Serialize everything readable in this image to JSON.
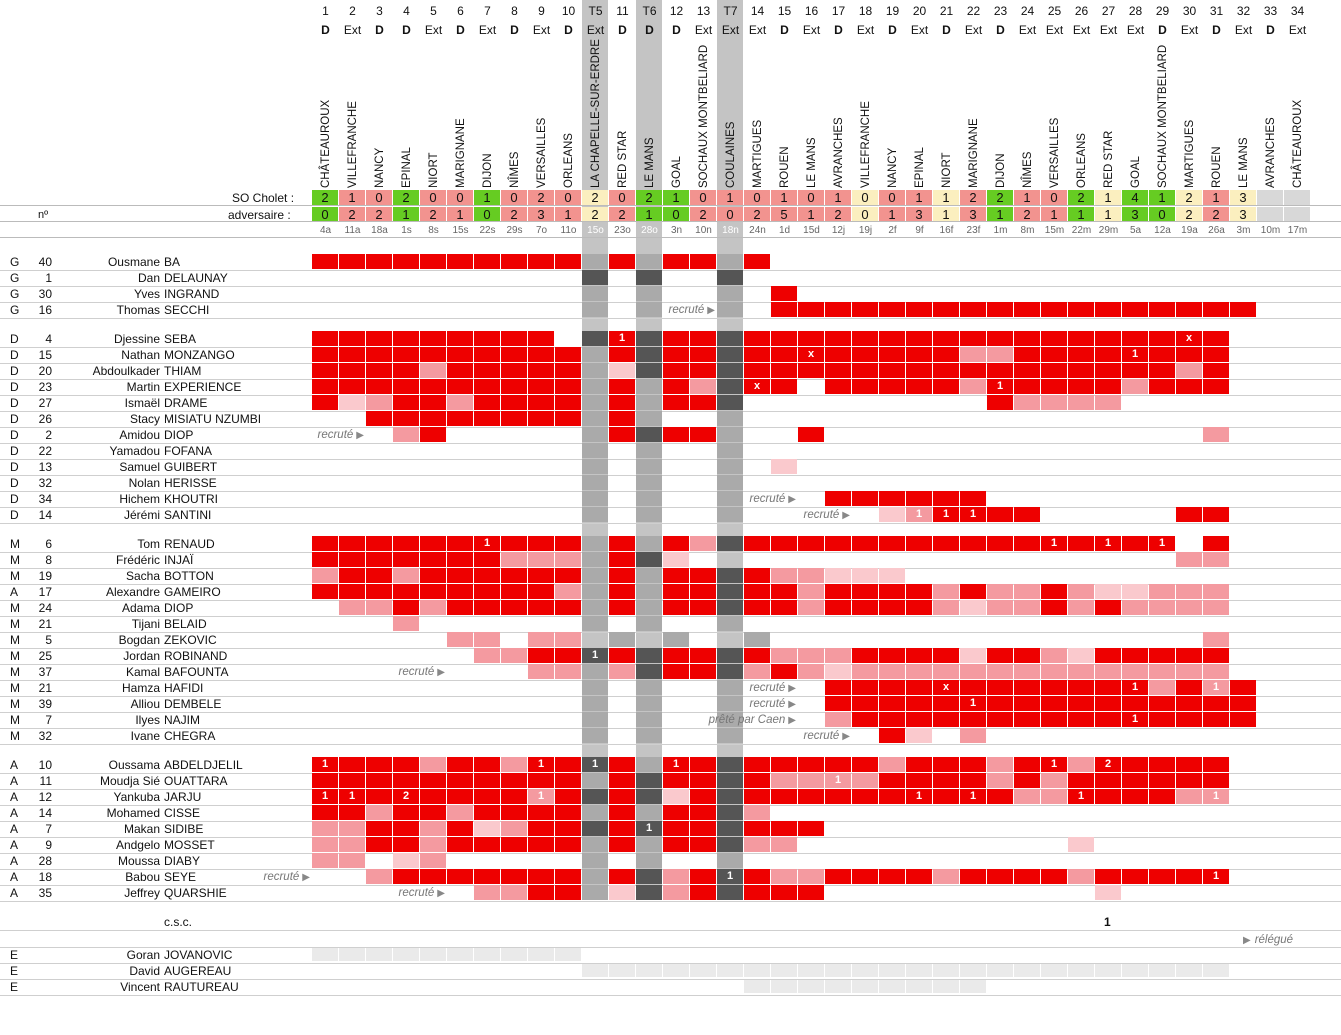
{
  "header": {
    "team_label": "SO Cholet :",
    "opp_label": "adversaire :",
    "no_label": "nº"
  },
  "columns": [
    {
      "n": "1",
      "v": "D",
      "opp": "CHÂTEAUROUX",
      "h": "2",
      "a": "0",
      "d": "4a",
      "sh": "g"
    },
    {
      "n": "2",
      "v": "Ext",
      "opp": "VILLEFRANCHE",
      "h": "1",
      "a": "2",
      "d": "11a",
      "sh": "r"
    },
    {
      "n": "3",
      "v": "D",
      "opp": "NANCY",
      "h": "0",
      "a": "2",
      "d": "18a",
      "sh": "r"
    },
    {
      "n": "4",
      "v": "D",
      "opp": "EPINAL",
      "h": "2",
      "a": "1",
      "d": "1s",
      "sh": "g"
    },
    {
      "n": "5",
      "v": "Ext",
      "opp": "NIORT",
      "h": "0",
      "a": "2",
      "d": "8s",
      "sh": "r"
    },
    {
      "n": "6",
      "v": "D",
      "opp": "MARIGNANE",
      "h": "0",
      "a": "1",
      "d": "15s",
      "sh": "r"
    },
    {
      "n": "7",
      "v": "Ext",
      "opp": "DIJON",
      "h": "1",
      "a": "0",
      "d": "22s",
      "sh": "g"
    },
    {
      "n": "8",
      "v": "D",
      "opp": "NÎMES",
      "h": "0",
      "a": "2",
      "d": "29s",
      "sh": "r"
    },
    {
      "n": "9",
      "v": "Ext",
      "opp": "VERSAILLES",
      "h": "2",
      "a": "3",
      "d": "7o",
      "sh": "r"
    },
    {
      "n": "10",
      "v": "D",
      "opp": "ORLEANS",
      "h": "0",
      "a": "1",
      "d": "11o",
      "sh": "r"
    },
    {
      "n": "T5",
      "v": "Ext",
      "opp": "LA CHAPELLE-SUR-ERDRE",
      "h": "2",
      "a": "2",
      "d": "15o",
      "sh": "y",
      "grey": true
    },
    {
      "n": "11",
      "v": "D",
      "opp": "RED STAR",
      "h": "0",
      "a": "2",
      "d": "23o",
      "sh": "r"
    },
    {
      "n": "T6",
      "v": "D",
      "opp": "LE MANS",
      "h": "2",
      "a": "1",
      "d": "28o",
      "sh": "g",
      "grey": true
    },
    {
      "n": "12",
      "v": "D",
      "opp": "GOAL",
      "h": "1",
      "a": "0",
      "d": "3n",
      "sh": "g"
    },
    {
      "n": "13",
      "v": "Ext",
      "opp": "SOCHAUX MONTBELIARD",
      "h": "0",
      "a": "2",
      "d": "10n",
      "sh": "r"
    },
    {
      "n": "T7",
      "v": "Ext",
      "opp": "COULAINES",
      "h": "1",
      "a": "0",
      "d": "18n",
      "sh": "r",
      "grey": true
    },
    {
      "n": "14",
      "v": "Ext",
      "opp": "MARTIGUES",
      "h": "0",
      "a": "2",
      "d": "24n",
      "sh": "r"
    },
    {
      "n": "15",
      "v": "D",
      "opp": "ROUEN",
      "h": "1",
      "a": "5",
      "d": "1d",
      "sh": "r"
    },
    {
      "n": "16",
      "v": "Ext",
      "opp": "LE MANS",
      "h": "0",
      "a": "1",
      "d": "15d",
      "sh": "r"
    },
    {
      "n": "17",
      "v": "D",
      "opp": "AVRANCHES",
      "h": "1",
      "a": "2",
      "d": "12j",
      "sh": "r"
    },
    {
      "n": "18",
      "v": "Ext",
      "opp": "VILLEFRANCHE",
      "h": "0",
      "a": "0",
      "d": "19j",
      "sh": "y"
    },
    {
      "n": "19",
      "v": "D",
      "opp": "NANCY",
      "h": "0",
      "a": "1",
      "d": "2f",
      "sh": "r"
    },
    {
      "n": "20",
      "v": "Ext",
      "opp": "EPINAL",
      "h": "1",
      "a": "3",
      "d": "9f",
      "sh": "r"
    },
    {
      "n": "21",
      "v": "D",
      "opp": "NIORT",
      "h": "1",
      "a": "1",
      "d": "16f",
      "sh": "y"
    },
    {
      "n": "22",
      "v": "Ext",
      "opp": "MARIGNANE",
      "h": "2",
      "a": "3",
      "d": "23f",
      "sh": "r"
    },
    {
      "n": "23",
      "v": "D",
      "opp": "DIJON",
      "h": "2",
      "a": "1",
      "d": "1m",
      "sh": "g"
    },
    {
      "n": "24",
      "v": "Ext",
      "opp": "NÎMES",
      "h": "1",
      "a": "2",
      "d": "8m",
      "sh": "r"
    },
    {
      "n": "25",
      "v": "Ext",
      "opp": "VERSAILLES",
      "h": "0",
      "a": "1",
      "d": "15m",
      "sh": "r"
    },
    {
      "n": "26",
      "v": "Ext",
      "opp": "ORLEANS",
      "h": "2",
      "a": "1",
      "d": "22m",
      "sh": "g"
    },
    {
      "n": "27",
      "v": "Ext",
      "opp": "RED STAR",
      "h": "1",
      "a": "1",
      "d": "29m",
      "sh": "y"
    },
    {
      "n": "28",
      "v": "Ext",
      "opp": "GOAL",
      "h": "4",
      "a": "3",
      "d": "5a",
      "sh": "g"
    },
    {
      "n": "29",
      "v": "D",
      "opp": "SOCHAUX MONTBELIARD",
      "h": "1",
      "a": "0",
      "d": "12a",
      "sh": "g"
    },
    {
      "n": "30",
      "v": "Ext",
      "opp": "MARTIGUES",
      "h": "2",
      "a": "2",
      "d": "19a",
      "sh": "y"
    },
    {
      "n": "31",
      "v": "D",
      "opp": "ROUEN",
      "h": "1",
      "a": "2",
      "d": "26a",
      "sh": "r"
    },
    {
      "n": "32",
      "v": "Ext",
      "opp": "LE MANS",
      "h": "3",
      "a": "3",
      "d": "3m",
      "sh": "y"
    },
    {
      "n": "33",
      "v": "D",
      "opp": "AVRANCHES",
      "h": "",
      "a": "",
      "d": "10m",
      "sh": "e"
    },
    {
      "n": "34",
      "v": "Ext",
      "opp": "CHÂTEAUROUX",
      "h": "",
      "a": "",
      "d": "17m",
      "sh": "e"
    }
  ],
  "players": [
    {
      "pos": "G",
      "no": "40",
      "first": "Ousmane",
      "last": "BA",
      "cells": "RRRRRRRRRRGRGRRGRP",
      "marks": {}
    },
    {
      "pos": "G",
      "no": "1",
      "first": "Dan",
      "last": "DELAUNAY",
      "cells": "..........D.D..D",
      "marks": {}
    },
    {
      "pos": "G",
      "no": "30",
      "first": "Yves",
      "last": "INGRAND",
      "cells": "..........G.G..GPRP",
      "marks": {}
    },
    {
      "pos": "G",
      "no": "16",
      "first": "Thomas",
      "last": "SECCHI",
      "cells": "..........G.G..G.RRRRRRRRRRRRRRRRRR",
      "marks": {},
      "note": {
        "text": "recruté",
        "col": 16
      }
    },
    {
      "pos": "D",
      "no": "4",
      "first": "Djessine",
      "last": "SEBA",
      "cells": "RRRRRRRRR.DRDRRDRRRRRRRRRRRRRRRRRR",
      "marks": {
        "12": "1",
        "33": "x"
      },
      "gap": true
    },
    {
      "pos": "D",
      "no": "15",
      "first": "Nathan",
      "last": "MONZANGO",
      "cells": "RRRRRRRRRRGRDRRDRRRRRRRRMMRRRRRRRR",
      "marks": {
        "19": "x",
        "31": "1"
      }
    },
    {
      "pos": "D",
      "no": "20",
      "first": "Abdoulkader",
      "last": "THIAM",
      "cells": "RRRRMRRRRRGLDRRDRRRRRRRRRRRRRRRRMR",
      "marks": {}
    },
    {
      "pos": "D",
      "no": "23",
      "first": "Martin",
      "last": "EXPERIENCE",
      "cells": "RRRRRRRRRRGRGRMDRR.RRRRRMRRRRRMRRR",
      "marks": {
        "17": "x",
        "26": "1"
      }
    },
    {
      "pos": "D",
      "no": "27",
      "first": "Ismaël",
      "last": "DRAME",
      "cells": "RLMRRMRRRRGRGRRD.........RMMMM",
      "marks": {}
    },
    {
      "pos": "D",
      "no": "26",
      "first": "Stacy",
      "last": "MISIATU NZUMBI",
      "cells": "..RRRRRRRRGRG..G",
      "marks": {}
    },
    {
      "pos": "D",
      "no": "2",
      "first": "Amidou",
      "last": "DIOP",
      "cells": "...MR.....GRDRRG..R..............M",
      "marks": {},
      "note": {
        "text": "recruté",
        "col": 3
      }
    },
    {
      "pos": "D",
      "no": "22",
      "first": "Yamadou",
      "last": "FOFANA",
      "cells": "..........G.G..G",
      "marks": {}
    },
    {
      "pos": "D",
      "no": "13",
      "first": "Samuel",
      "last": "GUIBERT",
      "cells": "..........G.G..G.L",
      "marks": {}
    },
    {
      "pos": "D",
      "no": "32",
      "first": "Nolan",
      "last": "HERISSE",
      "cells": "..........G.G..G",
      "marks": {}
    },
    {
      "pos": "D",
      "no": "34",
      "first": "Hichem",
      "last": "KHOUTRI",
      "cells": "..........G.G..G...RRRRRR",
      "marks": {},
      "note": {
        "text": "recruté",
        "col": 19
      }
    },
    {
      "pos": "D",
      "no": "14",
      "first": "Jérémi",
      "last": "SANTINI",
      "cells": "..........G.G..G.....LMRRRR.....RR",
      "marks": {
        "23": "1",
        "24": "1",
        "25": "1",
        "32": "x"
      },
      "note": {
        "text": "recruté",
        "col": 21
      }
    },
    {
      "pos": "M",
      "no": "6",
      "first": "Tom",
      "last": "RENAUD",
      "cells": "RRRRRRRRRRGRGRMDRRRRRRRRRRRRRRRR.R",
      "marks": {
        "7": "1",
        "28": "1",
        "30": "1",
        "32": "1"
      },
      "gap": true
    },
    {
      "pos": "M",
      "no": "8",
      "first": "Frédéric",
      "last": "INJAÏ",
      "cells": "RRRRRRRMMMGRDL..................MM",
      "marks": {}
    },
    {
      "pos": "M",
      "no": "19",
      "first": "Sacha",
      "last": "BOTTON",
      "cells": "MRRMRRRRRRGRGRRDRMMLLL",
      "marks": {}
    },
    {
      "pos": "A",
      "no": "17",
      "first": "Alexandre",
      "last": "GAMEIRO",
      "cells": "RRRRRRRRRMGRGRRDRRMRRRRMRMMRMLLMMM",
      "marks": {}
    },
    {
      "pos": "M",
      "no": "24",
      "first": "Adama",
      "last": "DIOP",
      "cells": ".MMRMRRRRRGRGRRDRRMRRRRMLMMRMRMMMM",
      "marks": {}
    },
    {
      "pos": "M",
      "no": "21",
      "first": "Tijani",
      "last": "BELAID",
      "cells": "...M......G.G..G",
      "marks": {}
    },
    {
      "pos": "M",
      "no": "5",
      "first": "Bogdan",
      "last": "ZEKOVIC",
      "cells": ".....MM.MM.G.G..G................M",
      "marks": {}
    },
    {
      "pos": "M",
      "no": "25",
      "first": "Jordan",
      "last": "ROBINAND",
      "cells": "......MMRRDRDRRDRMMMRRRRLRRMLRRRRR",
      "marks": {
        "11": "1"
      }
    },
    {
      "pos": "M",
      "no": "37",
      "first": "Kamal",
      "last": "BAFOUNTA",
      "cells": "........MMGMDRRDMRMLMMMMMMMMMMMMMM",
      "marks": {},
      "note": {
        "text": "recruté",
        "col": 6
      }
    },
    {
      "pos": "M",
      "no": "21",
      "first": "Hamza",
      "last": "HAFIDI",
      "cells": "..........G.G..G...RRRRRRRRRRRRMRMR",
      "marks": {
        "24": "x",
        "31": "1",
        "34": "1"
      },
      "note": {
        "text": "recruté",
        "col": 19
      }
    },
    {
      "pos": "M",
      "no": "39",
      "first": "Alliou",
      "last": "DEMBELE",
      "cells": "..........G.G..G...RRRRRRRRRRRRRRRR",
      "marks": {
        "25": "1"
      },
      "note": {
        "text": "recruté",
        "col": 19
      }
    },
    {
      "pos": "M",
      "no": "7",
      "first": "Ilyes",
      "last": "NAJIM",
      "cells": "..........G.G..G...MRRRRRRRRRRRRRRR",
      "marks": {
        "31": "1"
      },
      "note": {
        "text": "prêté par Caen",
        "col": 19
      }
    },
    {
      "pos": "M",
      "no": "32",
      "first": "Ivane",
      "last": "CHEGRA",
      "cells": "..........G.G..G.....RL.M",
      "marks": {},
      "note": {
        "text": "recruté",
        "col": 21
      }
    },
    {
      "pos": "A",
      "no": "10",
      "first": "Oussama",
      "last": "ABDELDJELIL",
      "cells": "RRRRMRRMRRDRGRRDRRRRRMRRRMRRMRRRRR",
      "marks": {
        "1": "1",
        "9": "1",
        "11": "1",
        "14": "1",
        "28": "1",
        "30": "2"
      },
      "gap": true
    },
    {
      "pos": "A",
      "no": "11",
      "first": "Moudja Sié",
      "last": "OUATTARA",
      "cells": "RRRRRRRRRRGRDRRDRMMMMRRRRMRMRRRRRR",
      "marks": {
        "20": "1"
      }
    },
    {
      "pos": "A",
      "no": "12",
      "first": "Yankuba",
      "last": "JARJU",
      "cells": "RRRRRRRRMRDRDLRDRRRRRRRRRRMMRRRRMM",
      "marks": {
        "1": "1",
        "2": "1",
        "4": "2",
        "9": "1",
        "23": "1",
        "25": "1",
        "29": "1",
        "34": "1"
      }
    },
    {
      "pos": "A",
      "no": "14",
      "first": "Mohamed",
      "last": "CISSE",
      "cells": "RRMRRMRRRRGRGRRDM",
      "marks": {}
    },
    {
      "pos": "A",
      "no": "7",
      "first": "Makan",
      "last": "SIDIBE",
      "cells": "MMRRMRLMRRDRDRRDRRR",
      "marks": {
        "13": "1"
      }
    },
    {
      "pos": "A",
      "no": "9",
      "first": "Andgelo",
      "last": "MOSSET",
      "cells": "MMRRMRRRRRGRGRRDMM..........L",
      "marks": {}
    },
    {
      "pos": "A",
      "no": "28",
      "first": "Moussa",
      "last": "DIABY",
      "cells": "MM.LM.....G.G..G",
      "marks": {}
    },
    {
      "pos": "A",
      "no": "18",
      "first": "Babou",
      "last": "SEYE",
      "cells": "..MRRRRRRRGRDMRDRMMRRRRMRRRRMRRRRR",
      "marks": {
        "16": "1",
        "34": "1"
      },
      "note": {
        "text": "recruté",
        "col": 1
      }
    },
    {
      "pos": "A",
      "no": "35",
      "first": "Jeffrey",
      "last": "QUARSHIE",
      "cells": "......MMRRGLDMRDRRR..........L",
      "marks": {},
      "note": {
        "text": "recruté",
        "col": 6
      }
    }
  ],
  "csc": {
    "label": "c.s.c.",
    "col": 30,
    "value": "1"
  },
  "relegue": "rélégué",
  "extras": [
    {
      "pos": "E",
      "first": "Goran",
      "last": "JOVANOVIC",
      "span": [
        1,
        10
      ]
    },
    {
      "pos": "E",
      "first": "David",
      "last": "AUGEREAU",
      "span": [
        11,
        34
      ]
    },
    {
      "pos": "E",
      "first": "Vincent",
      "last": "RAUTUREAU",
      "span": [
        17,
        25
      ]
    }
  ],
  "colors": {
    "red": "#ee0000",
    "mid": "#f49aa0",
    "light": "#fac9cd",
    "green": "#66cc22",
    "salmon": "#f2938f",
    "yellow": "#fbefbf",
    "empty": "#d8d8d8",
    "darkgrey": "#555555",
    "midgrey": "#8f8f8f",
    "lightgrey": "#aaaaaa",
    "faint": "#eaeaea"
  }
}
